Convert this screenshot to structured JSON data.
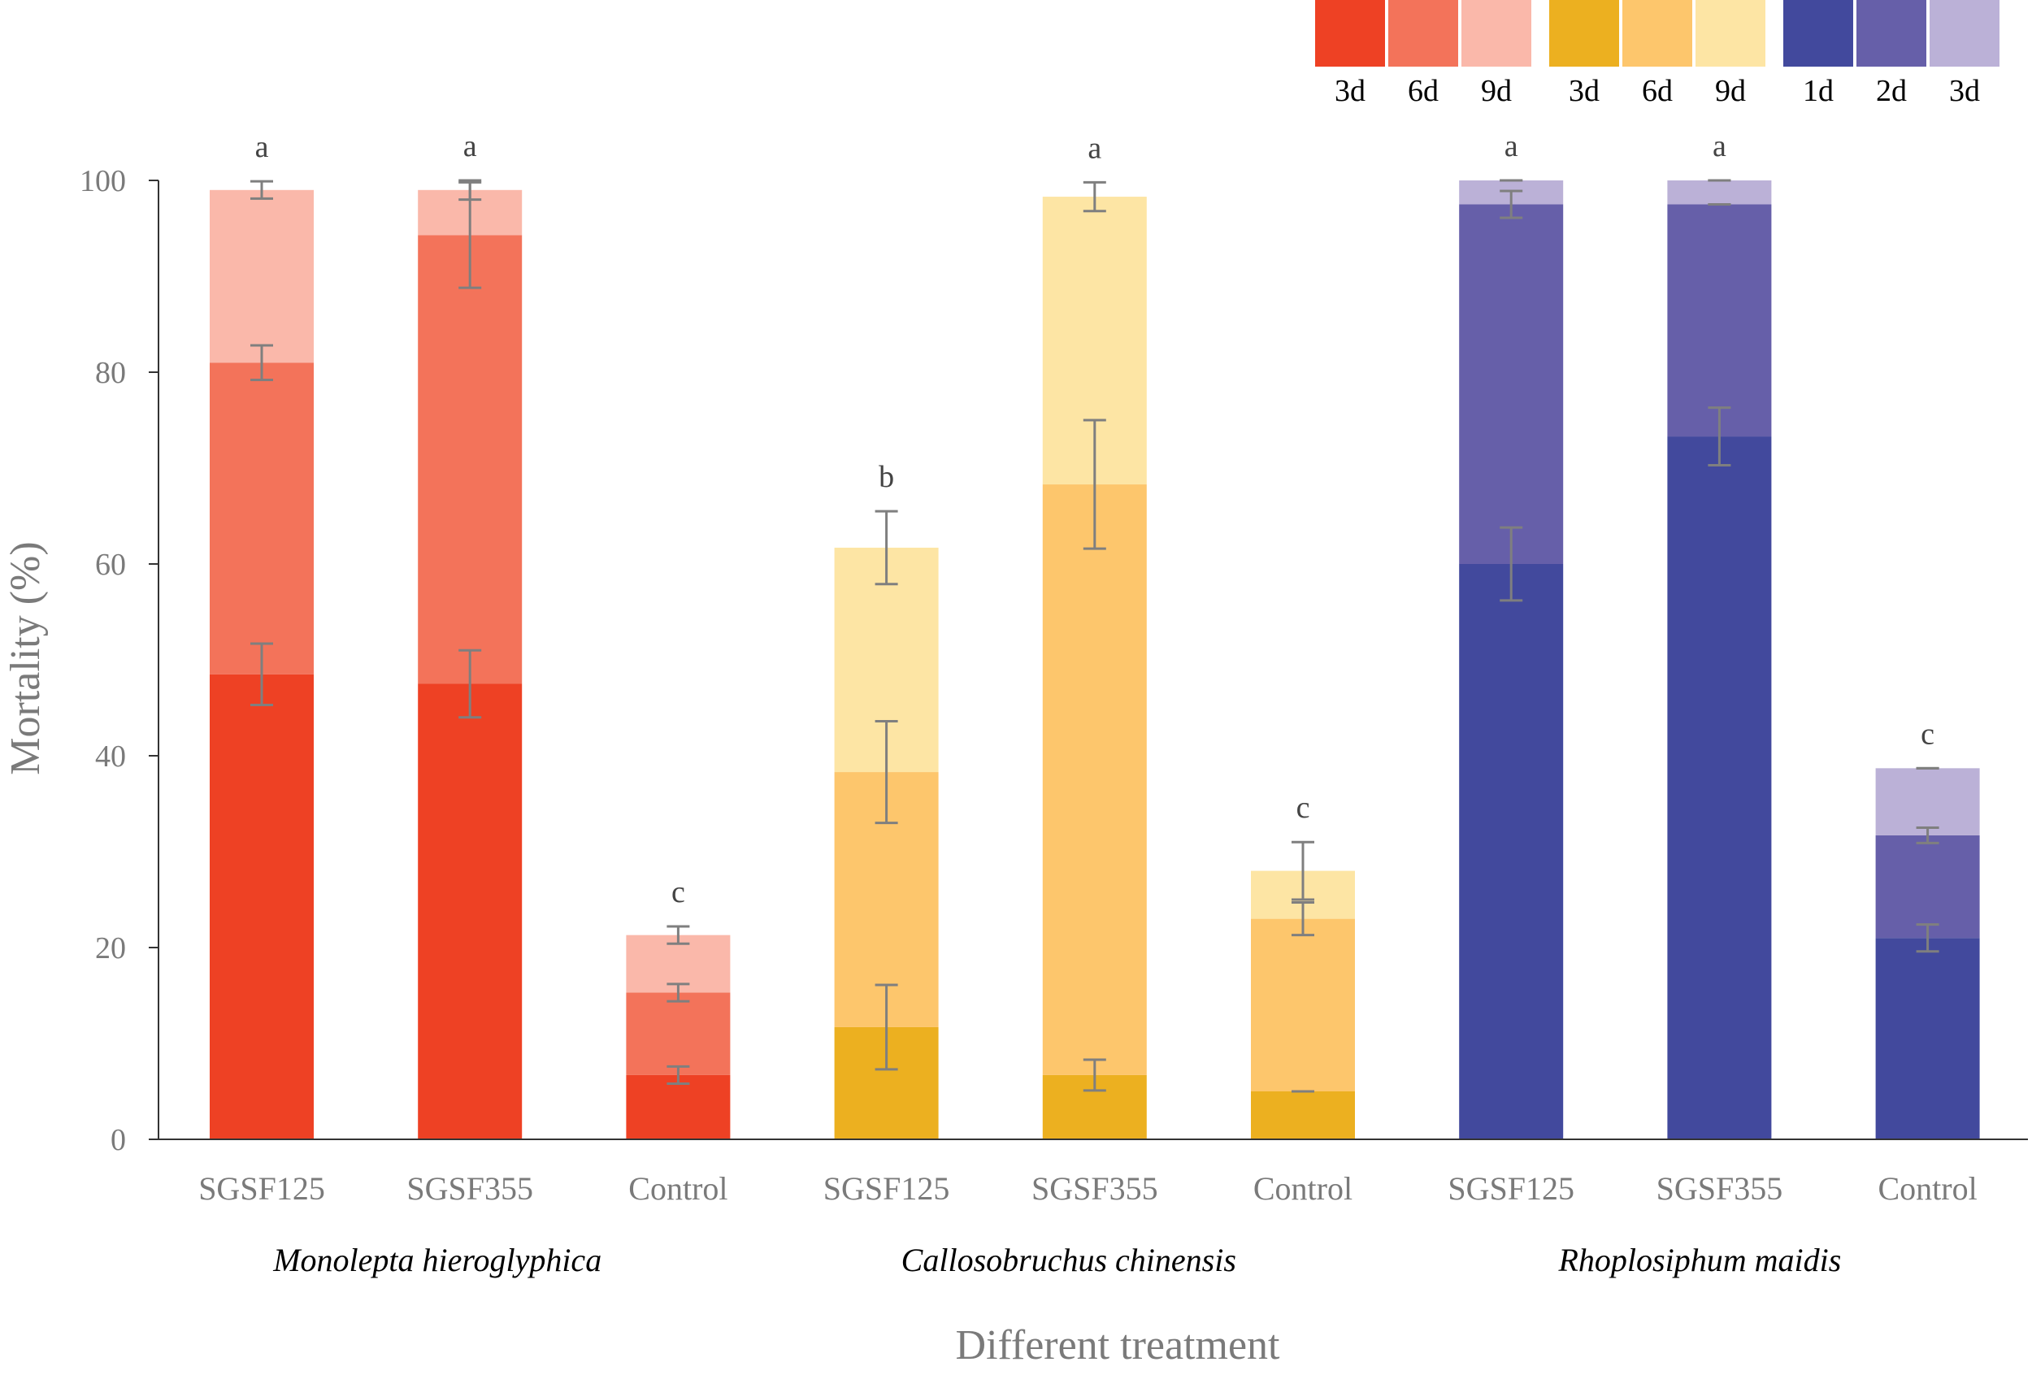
{
  "chart_data": {
    "type": "bar",
    "stacked": true,
    "title": "",
    "xlabel": "Different treatment",
    "ylabel": "Mortality (%)",
    "ylim": [
      0,
      100
    ],
    "yticks": [
      "0",
      "20",
      "40",
      "60",
      "80",
      "100"
    ],
    "grid": false,
    "legend_position": "top-right",
    "legend_groups": [
      {
        "colors": [
          "#ee4124",
          "#f3735a",
          "#fab8aa"
        ],
        "labels": [
          "3d",
          "6d",
          "9d"
        ]
      },
      {
        "colors": [
          "#ecb020",
          "#fdc66c",
          "#fde5a4"
        ],
        "labels": [
          "3d",
          "6d",
          "9d"
        ]
      },
      {
        "colors": [
          "#42499d",
          "#665fa9",
          "#bbb1d7"
        ],
        "labels": [
          "1d",
          "2d",
          "3d"
        ]
      }
    ],
    "groups": [
      {
        "name": "Monolepta hieroglyphica",
        "colors": [
          "#ee4124",
          "#f3735a",
          "#fab8aa"
        ],
        "series_names": [
          "3d",
          "6d",
          "9d"
        ],
        "bars": [
          {
            "category": "SGSF125",
            "values": [
              48.5,
              81,
              99
            ],
            "errors": [
              3.2,
              1.8,
              0.9
            ],
            "significance": "a"
          },
          {
            "category": "SGSF355",
            "values": [
              47.5,
              94.3,
              99
            ],
            "errors": [
              3.5,
              5.5,
              1.0
            ],
            "significance": "a"
          },
          {
            "category": "Control",
            "values": [
              6.7,
              15.3,
              21.3
            ],
            "errors": [
              0.9,
              0.9,
              0.9
            ],
            "significance": "c"
          }
        ]
      },
      {
        "name": "Callosobruchus chinensis",
        "colors": [
          "#ecb020",
          "#fdc66c",
          "#fde5a4"
        ],
        "series_names": [
          "3d",
          "6d",
          "9d"
        ],
        "bars": [
          {
            "category": "SGSF125",
            "values": [
              11.7,
              38.3,
              61.7
            ],
            "errors": [
              4.4,
              5.3,
              3.8
            ],
            "significance": "b"
          },
          {
            "category": "SGSF355",
            "values": [
              6.7,
              68.3,
              98.3
            ],
            "errors": [
              1.6,
              6.7,
              1.5
            ],
            "significance": "a"
          },
          {
            "category": "Control",
            "values": [
              5,
              23,
              28
            ],
            "errors": [
              0,
              1.7,
              3.0
            ],
            "significance": "c"
          }
        ]
      },
      {
        "name": "Rhoplosiphum maidis",
        "colors": [
          "#42499d",
          "#665fa9",
          "#bbb1d7"
        ],
        "series_names": [
          "1d",
          "2d",
          "3d"
        ],
        "bars": [
          {
            "category": "SGSF125",
            "values": [
              60,
              97.5,
              100
            ],
            "errors": [
              3.8,
              1.4,
              0
            ],
            "significance": "a"
          },
          {
            "category": "SGSF355",
            "values": [
              73.3,
              97.5,
              100
            ],
            "errors": [
              3.0,
              0,
              0
            ],
            "significance": "a"
          },
          {
            "category": "Control",
            "values": [
              21,
              31.7,
              38.7
            ],
            "errors": [
              1.4,
              0.8,
              0
            ],
            "significance": "c"
          }
        ]
      }
    ]
  }
}
